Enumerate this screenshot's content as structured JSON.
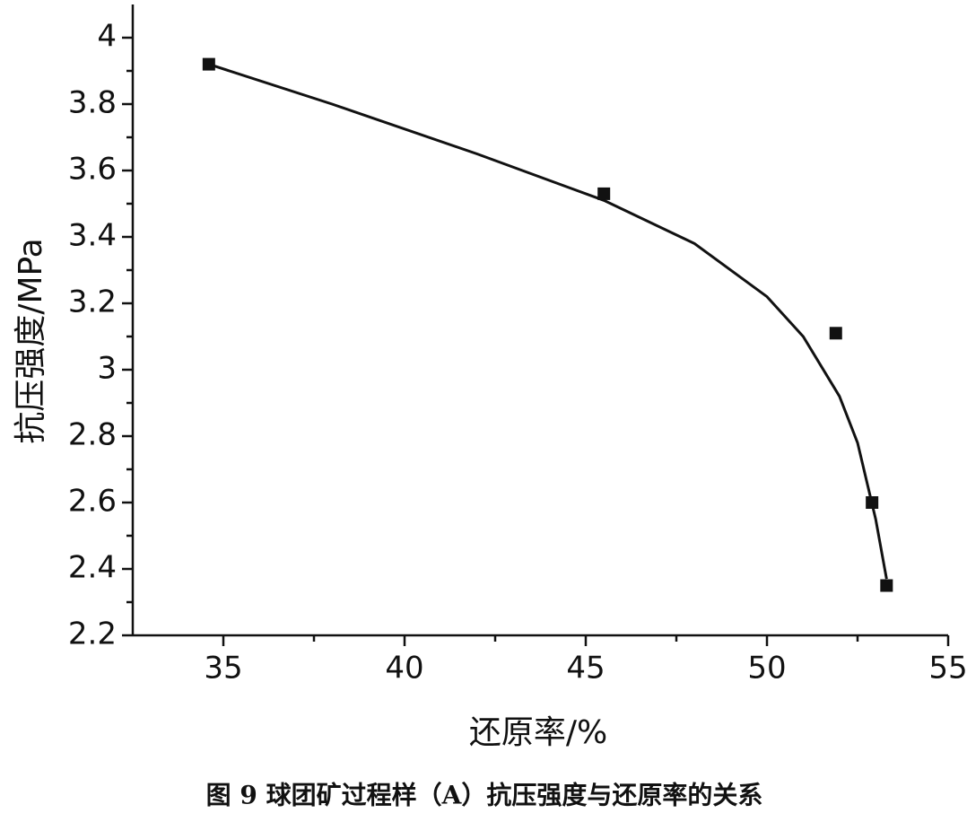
{
  "chart_data": {
    "type": "scatter",
    "caption": "图 9 球团矿过程样（A）抗压强度与还原率的关系",
    "x_label": "还原率/%",
    "y_label": "抗压强度/MPa",
    "xlim": [
      32.5,
      55
    ],
    "ylim": [
      2.2,
      4.1
    ],
    "xticks": [
      35,
      40,
      45,
      50,
      55
    ],
    "yticks": [
      2.2,
      2.4,
      2.6,
      2.8,
      3.0,
      3.2,
      3.4,
      3.6,
      3.8,
      4.0
    ],
    "xticks_minor": [
      37.5,
      42.5,
      47.5,
      52.5
    ],
    "yticks_minor": [
      2.3,
      2.5,
      2.7,
      2.9,
      3.1,
      3.3,
      3.5,
      3.7,
      3.9
    ],
    "color": "#111111",
    "points": {
      "x": [
        34.6,
        45.5,
        51.9,
        52.9,
        53.3
      ],
      "values": [
        3.92,
        3.53,
        3.11,
        2.6,
        2.35
      ]
    },
    "fit": {
      "x": [
        34.6,
        38,
        42,
        45.5,
        48,
        50,
        51,
        52,
        52.5,
        53,
        53.3
      ],
      "values": [
        3.92,
        3.8,
        3.65,
        3.51,
        3.38,
        3.22,
        3.1,
        2.92,
        2.78,
        2.55,
        2.37
      ]
    }
  }
}
